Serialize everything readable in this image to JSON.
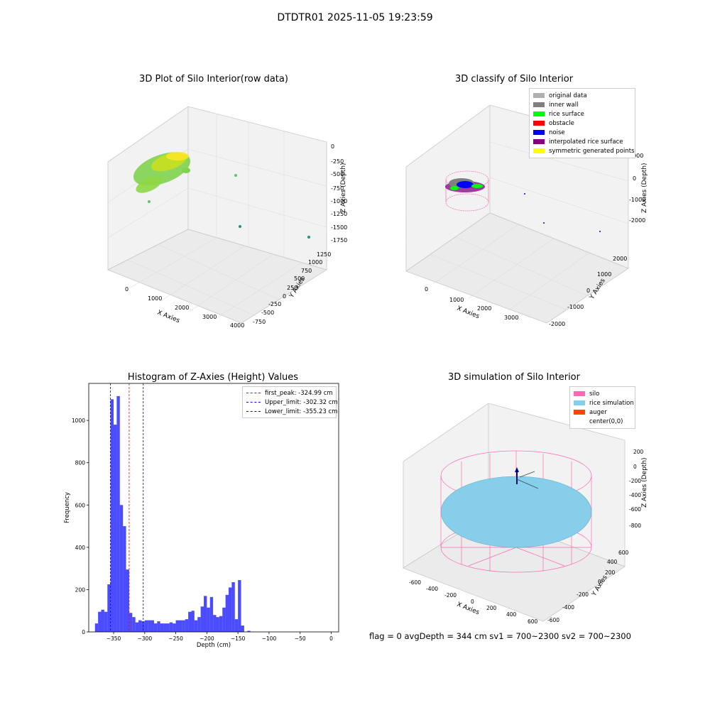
{
  "suptitle": "DTDTR01 2025-11-05 19:23:59",
  "footer": "flag = 0     avgDepth = 344 cm  sv1 = 700~2300  sv2 = 700~2300",
  "chart_data": [
    {
      "type": "scatter",
      "title": "3D Plot of Silo Interior(row data)",
      "xlabel": "X Axies",
      "ylabel": "Y Axies",
      "zlabel": "Z Axies (Depth)",
      "x_ticks": [
        "0",
        "1000",
        "2000",
        "3000",
        "4000"
      ],
      "y_ticks": [
        "-750",
        "-500",
        "-250",
        "0",
        "250",
        "500",
        "750",
        "1000",
        "1250"
      ],
      "z_ticks": [
        "0",
        "-250",
        "-500",
        "-750",
        "-1000",
        "-1250",
        "-1500",
        "-1750"
      ],
      "colors": {
        "low": "#5ec962",
        "high": "#fde725"
      }
    },
    {
      "type": "scatter",
      "title": "3D classify of Silo Interior",
      "xlabel": "X Axies",
      "ylabel": "Y Axies",
      "zlabel": "Z Axies (Depth)",
      "x_ticks": [
        "0",
        "1000",
        "2000",
        "3000"
      ],
      "y_ticks": [
        "-2000",
        "-1000",
        "0",
        "1000",
        "2000"
      ],
      "z_ticks": [
        "1000",
        "0",
        "-1000",
        "-2000"
      ],
      "legend": [
        {
          "label": "original data",
          "color": "#b0b0b0"
        },
        {
          "label": "inner wall",
          "color": "#808080"
        },
        {
          "label": "rice surface",
          "color": "#00ff00"
        },
        {
          "label": "obstacle",
          "color": "#ff0000"
        },
        {
          "label": "noise",
          "color": "#0000ff"
        },
        {
          "label": "interpolated rice surface",
          "color": "#800080"
        },
        {
          "label": "symmetric generated points",
          "color": "#ffff00"
        }
      ]
    },
    {
      "type": "bar",
      "title": "Histogram of Z-Axies (Height) Values",
      "xlabel": "Depth (cm)",
      "ylabel": "Frequency",
      "bin_start": -380,
      "bin_width": 5,
      "values": [
        40,
        95,
        105,
        95,
        225,
        1100,
        980,
        1115,
        600,
        500,
        295,
        90,
        70,
        45,
        55,
        50,
        55,
        55,
        55,
        40,
        50,
        40,
        40,
        40,
        45,
        40,
        55,
        55,
        55,
        60,
        95,
        100,
        55,
        70,
        120,
        170,
        115,
        165,
        80,
        70,
        75,
        115,
        175,
        210,
        235,
        60,
        245,
        30,
        0,
        5
      ],
      "x_ticks": [
        -350,
        -300,
        -250,
        -200,
        -150,
        -100,
        -50,
        0
      ],
      "y_ticks": [
        0,
        200,
        400,
        600,
        800,
        1000
      ],
      "xlim": [
        -390,
        12
      ],
      "ylim": [
        0,
        1175
      ],
      "bar_color": "#0000ff",
      "vlines": [
        {
          "label": "first_peak: -324.99 cm",
          "x": -324.99,
          "color": "#ff0000"
        },
        {
          "label": "Upper_limit: -302.32 cm",
          "x": -302.32,
          "color": "#0000ff"
        },
        {
          "label": "Lower_limit: -355.23 cm",
          "x": -355.23,
          "color": "#0000ff"
        }
      ]
    },
    {
      "type": "scatter",
      "title": "3D simulation of Silo Interior",
      "xlabel": "X Axies",
      "ylabel": "Y Axies",
      "zlabel": "Z Axies (Depth)",
      "x_ticks": [
        "-600",
        "-400",
        "-200",
        "0",
        "200",
        "400",
        "600"
      ],
      "y_ticks": [
        "-600",
        "-400",
        "-200",
        "0",
        "200",
        "400",
        "600"
      ],
      "z_ticks": [
        "200",
        "0",
        "-200",
        "-400",
        "-600",
        "-800"
      ],
      "legend": [
        {
          "label": "silo",
          "color": "#ff69b4"
        },
        {
          "label": "rice simulation",
          "color": "#87ceeb"
        },
        {
          "label": "auger",
          "color": "#ff4500"
        },
        {
          "label": "center(0,0)",
          "color": ""
        }
      ]
    }
  ]
}
